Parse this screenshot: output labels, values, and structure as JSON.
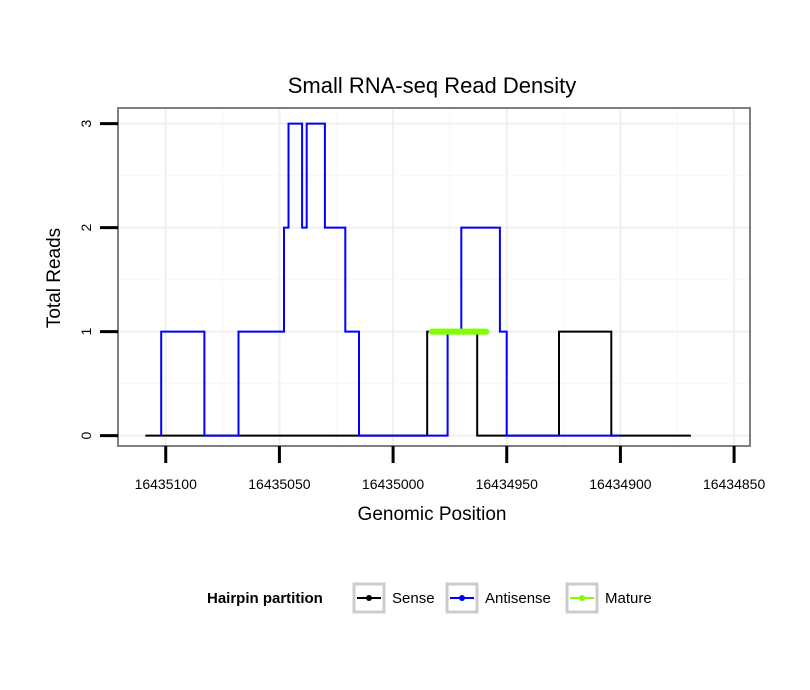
{
  "chart_data": {
    "type": "line",
    "title": "Small RNA-seq Read Density",
    "xlabel": "Genomic Position",
    "ylabel": "Total Reads",
    "x_reversed": true,
    "xlim": [
      16435121,
      16434843
    ],
    "ylim": [
      -0.1,
      3.15
    ],
    "x_ticks": [
      16435100,
      16435050,
      16435000,
      16434950,
      16434900,
      16434850
    ],
    "x_tick_labels": [
      "16435100",
      "16435050",
      "16435000",
      "16434950",
      "16434900",
      "16434850"
    ],
    "y_ticks": [
      0,
      1,
      2,
      3
    ],
    "y_tick_labels": [
      "0",
      "1",
      "2",
      "3"
    ],
    "grid": true,
    "legend": {
      "title": "Hairpin partition",
      "position": "bottom"
    },
    "series": [
      {
        "name": "Sense",
        "color": "#000000",
        "line_width": 2,
        "x": [
          16435109,
          16434985,
          16434985,
          16434983,
          16434983,
          16434963,
          16434963,
          16434927,
          16434927,
          16434904,
          16434904,
          16434869
        ],
        "y": [
          0,
          0,
          1,
          1,
          1,
          1,
          0,
          0,
          1,
          1,
          0,
          0
        ]
      },
      {
        "name": "Antisense",
        "color": "#0000ff",
        "line_width": 2,
        "x": [
          16435102,
          16435102,
          16435083,
          16435083,
          16435068,
          16435068,
          16435048,
          16435048,
          16435046,
          16435046,
          16435040,
          16435040,
          16435038,
          16435038,
          16435030,
          16435030,
          16435021,
          16435021,
          16435015,
          16435015,
          16435011,
          16435011,
          16434976,
          16434976,
          16434970,
          16434970,
          16434953,
          16434953,
          16434950,
          16434950,
          16434917,
          16434917,
          16434900
        ],
        "y": [
          0,
          1,
          1,
          0,
          0,
          1,
          1,
          2,
          2,
          3,
          3,
          2,
          2,
          3,
          3,
          2,
          2,
          1,
          1,
          0,
          0,
          0,
          0,
          1,
          1,
          2,
          2,
          1,
          1,
          0,
          0,
          0,
          0
        ]
      },
      {
        "name": "Mature",
        "color": "#7fff00",
        "line_width": 6,
        "x": [
          16434983,
          16434959
        ],
        "y": [
          1,
          1
        ]
      }
    ]
  }
}
